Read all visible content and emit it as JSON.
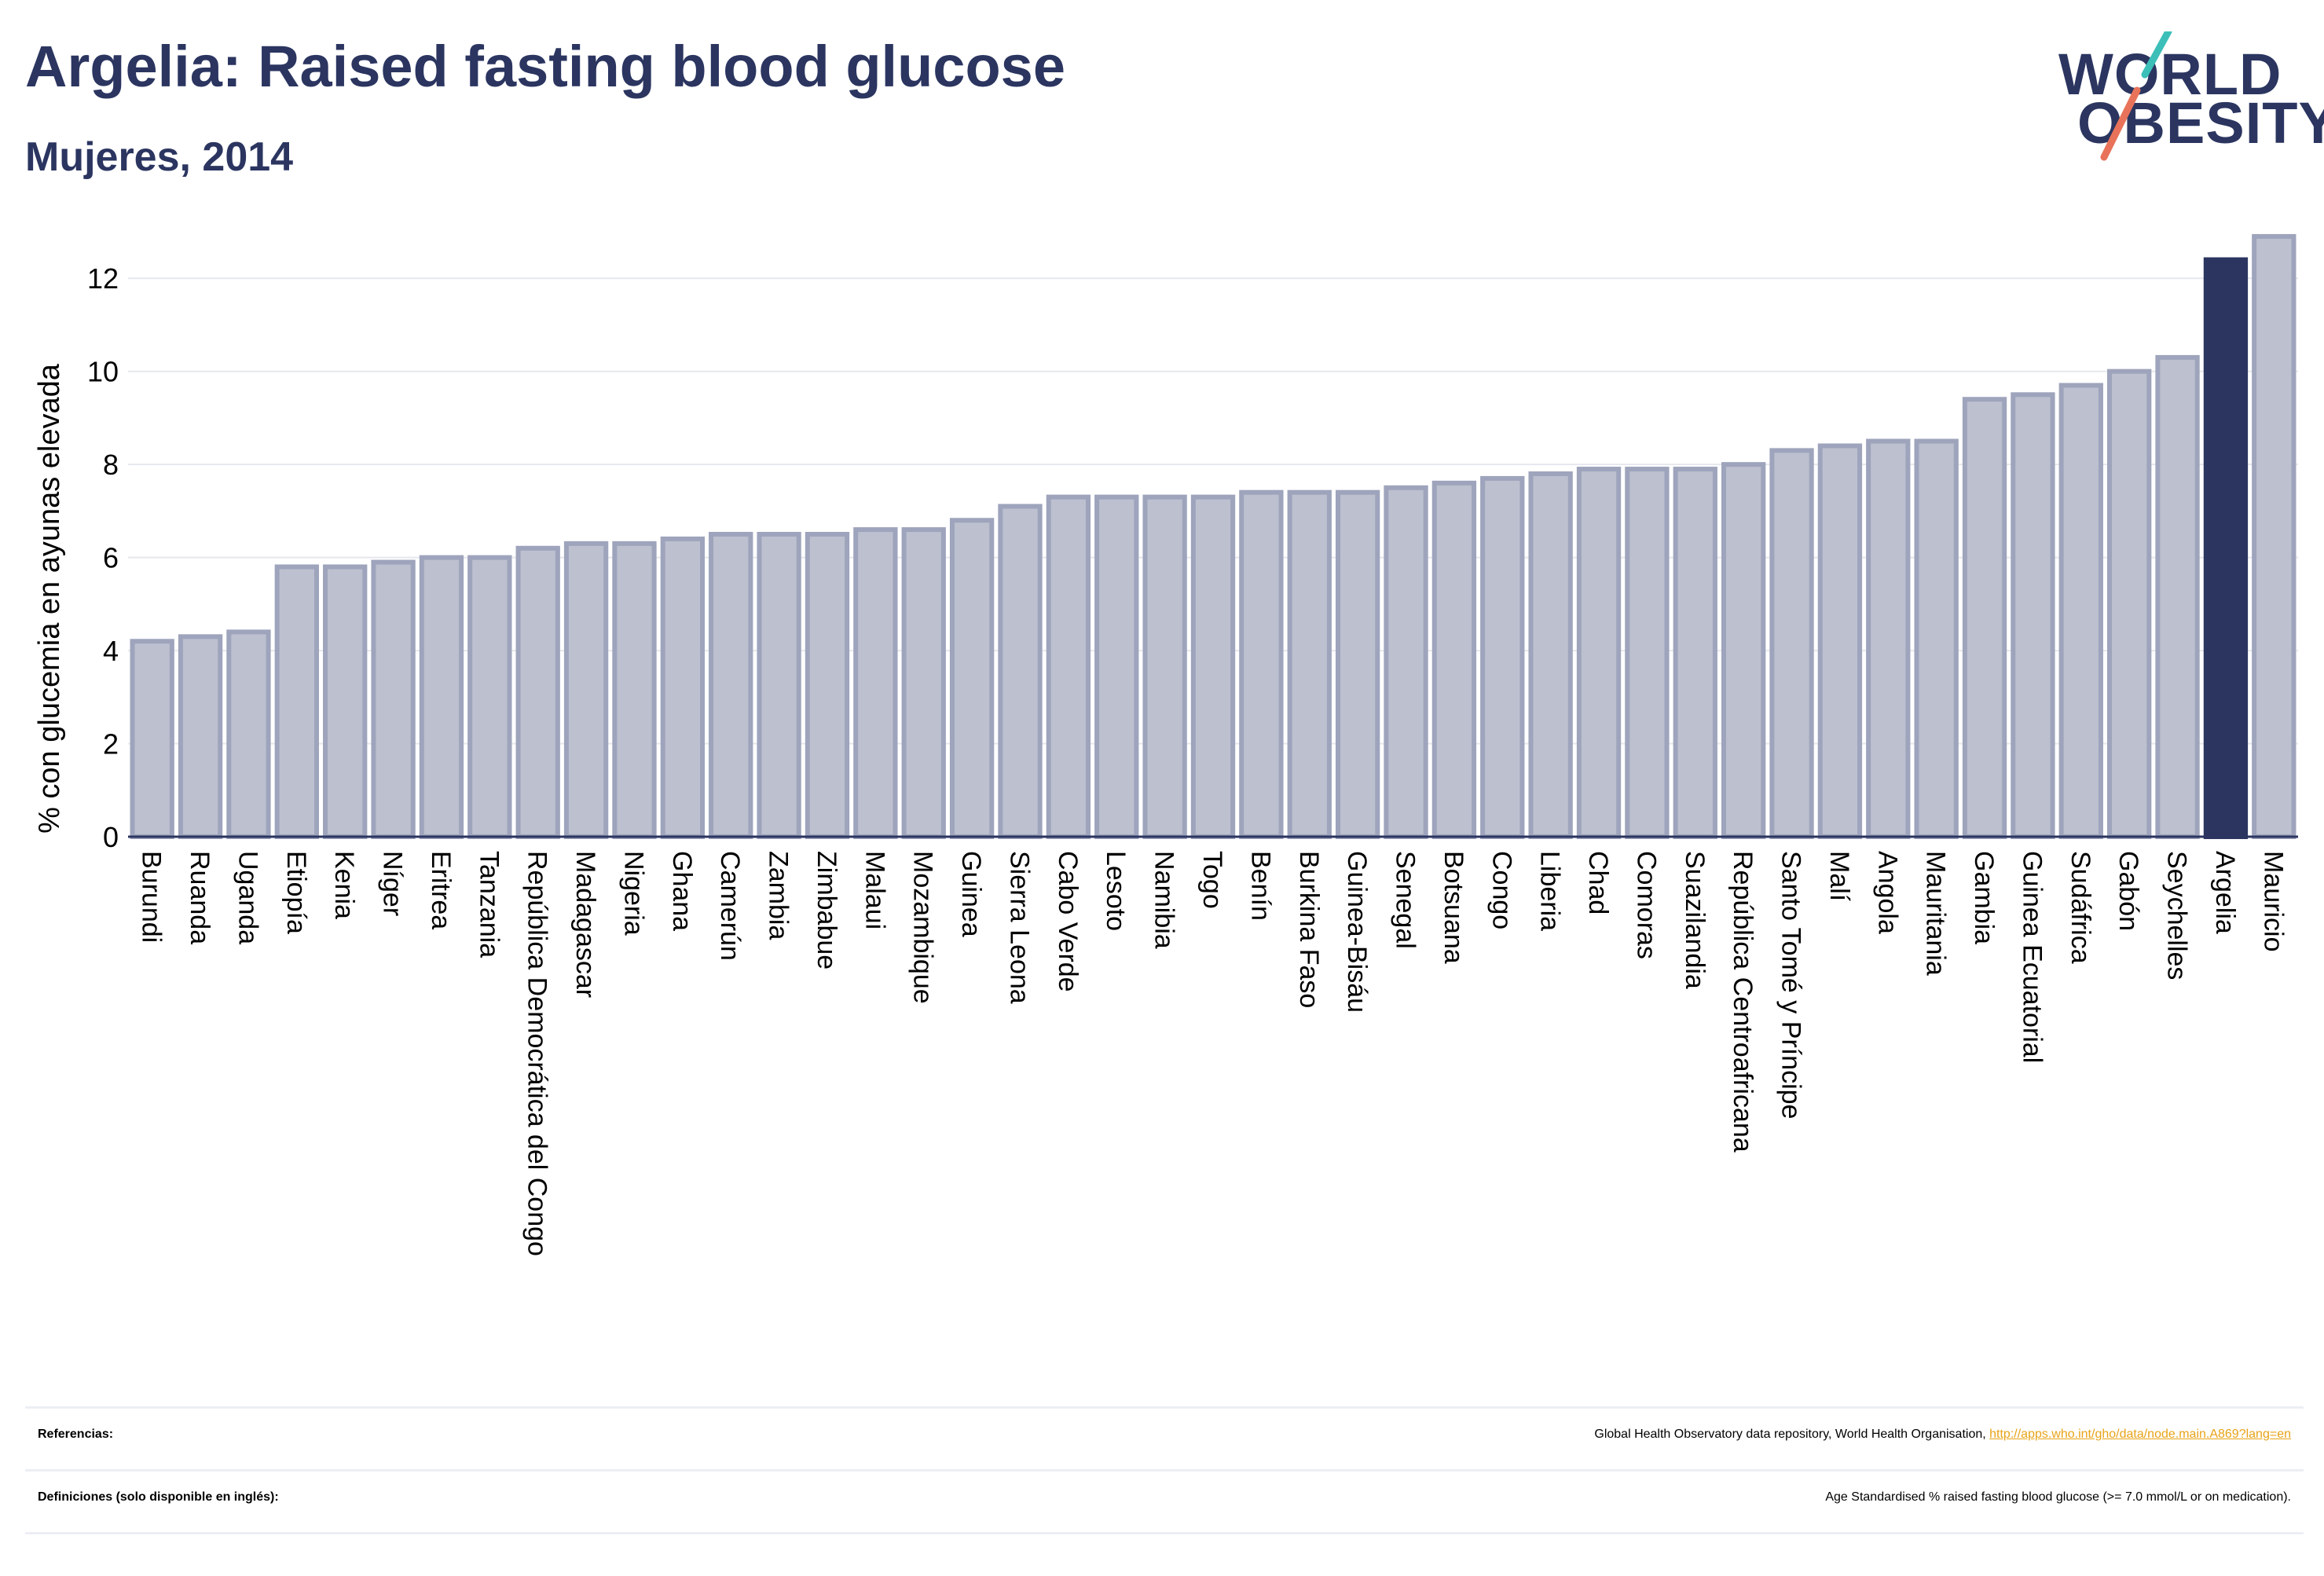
{
  "header": {
    "title": "Argelia: Raised fasting blood glucose",
    "subtitle": "Mujeres, 2014"
  },
  "logo": {
    "line1": "WORLD",
    "line2": "OBESITY",
    "accent_teal": "#3bbfb8",
    "accent_coral": "#e8735a"
  },
  "colors": {
    "bar_fill": "#bcc0cf",
    "bar_stroke": "#9ea4bc",
    "highlight": "#2b3560",
    "grid": "#e6e8ee"
  },
  "chart_data": {
    "type": "bar",
    "title": "",
    "xlabel": "",
    "ylabel": "% con glucemia en ayunas elevada",
    "ylim": [
      0,
      13
    ],
    "yticks": [
      0,
      2,
      4,
      6,
      8,
      10,
      12
    ],
    "grid": true,
    "highlight_category": "Argelia",
    "categories": [
      "Burundi",
      "Ruanda",
      "Uganda",
      "Etiopía",
      "Kenia",
      "Níger",
      "Eritrea",
      "Tanzania",
      "República Democrática del Congo",
      "Madagascar",
      "Nigeria",
      "Ghana",
      "Camerún",
      "Zambia",
      "Zimbabue",
      "Malaui",
      "Mozambique",
      "Guinea",
      "Sierra Leona",
      "Cabo Verde",
      "Lesoto",
      "Namibia",
      "Togo",
      "Benín",
      "Burkina Faso",
      "Guinea-Bisáu",
      "Senegal",
      "Botsuana",
      "Congo",
      "Liberia",
      "Chad",
      "Comoras",
      "Suazilandia",
      "República Centroafricana",
      "Santo Tomé y Príncipe",
      "Malí",
      "Angola",
      "Mauritania",
      "Gambia",
      "Guinea Ecuatorial",
      "Sudáfrica",
      "Gabón",
      "Seychelles",
      "Argelia",
      "Mauricio"
    ],
    "values": [
      4.2,
      4.3,
      4.4,
      5.8,
      5.8,
      5.9,
      6.0,
      6.0,
      6.2,
      6.3,
      6.3,
      6.4,
      6.5,
      6.5,
      6.5,
      6.6,
      6.6,
      6.8,
      7.1,
      7.3,
      7.3,
      7.3,
      7.3,
      7.4,
      7.4,
      7.4,
      7.5,
      7.6,
      7.7,
      7.8,
      7.9,
      7.9,
      7.9,
      8.0,
      8.3,
      8.4,
      8.5,
      8.5,
      9.4,
      9.5,
      9.7,
      10.0,
      10.3,
      12.4,
      12.9
    ]
  },
  "footer": {
    "references_label": "Referencias:",
    "references_text": "Global Health Observatory data repository, World Health Organisation, ",
    "references_link": "http://apps.who.int/gho/data/node.main.A869?lang=en",
    "definitions_label": "Definiciones (solo disponible en inglés):",
    "definitions_text": "Age Standardised % raised fasting blood glucose (>= 7.0 mmol/L or on medication)."
  }
}
